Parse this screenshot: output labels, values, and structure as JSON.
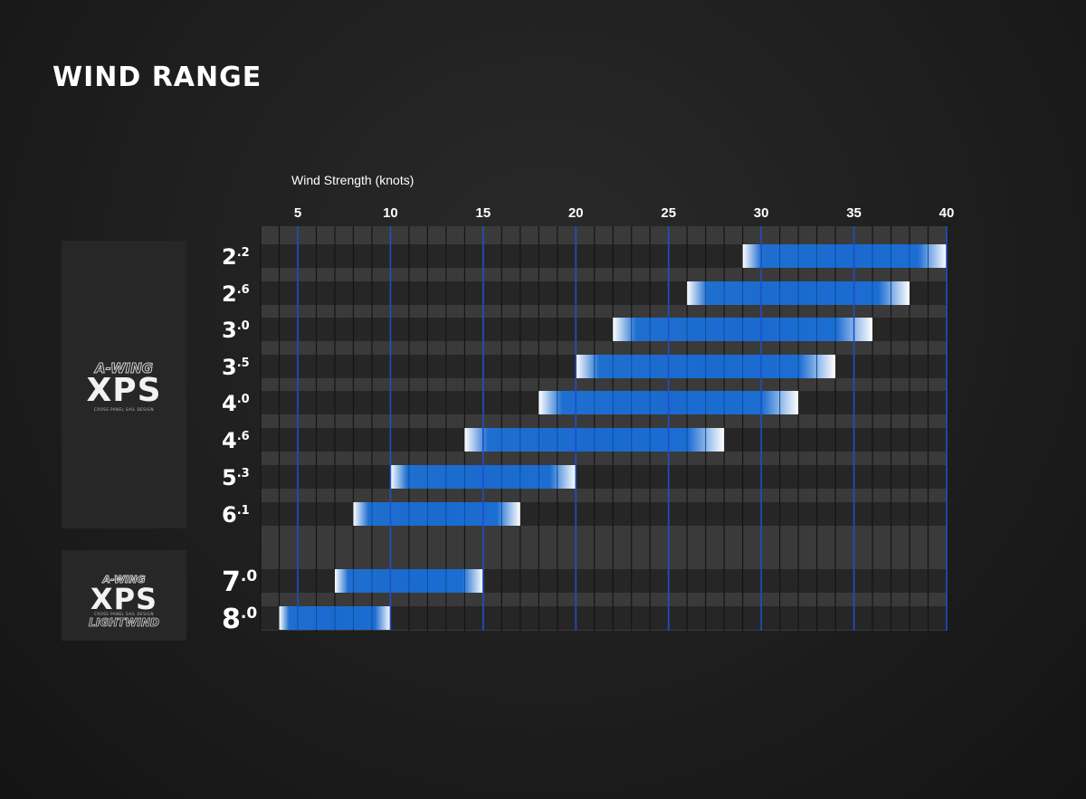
{
  "title": "WIND RANGE",
  "chart_data": {
    "type": "bar",
    "subtype": "range-bar",
    "xlabel": "Wind Strength (knots)",
    "xlim": [
      3,
      40
    ],
    "xticks": [
      5,
      10,
      15,
      20,
      25,
      30,
      35,
      40
    ],
    "grid": true,
    "series_color": "#1a6fd4",
    "groups": [
      {
        "brand_top": "A-WING",
        "brand_main": "XPS",
        "brand_tag": "CROSS PANEL SAIL DESIGN",
        "rows": [
          {
            "label_main": "2",
            "label_sup": ".2",
            "min": 29,
            "max": 40
          },
          {
            "label_main": "2",
            "label_sup": ".6",
            "min": 26,
            "max": 38
          },
          {
            "label_main": "3",
            "label_sup": ".0",
            "min": 22,
            "max": 36
          },
          {
            "label_main": "3",
            "label_sup": ".5",
            "min": 20,
            "max": 34
          },
          {
            "label_main": "4",
            "label_sup": ".0",
            "min": 18,
            "max": 32
          },
          {
            "label_main": "4",
            "label_sup": ".6",
            "min": 14,
            "max": 28
          },
          {
            "label_main": "5",
            "label_sup": ".3",
            "min": 10,
            "max": 20
          },
          {
            "label_main": "6",
            "label_sup": ".1",
            "min": 8,
            "max": 17
          }
        ]
      },
      {
        "brand_top": "A-WING",
        "brand_main": "XPS",
        "brand_tag": "CROSS PANEL SAIL DESIGN",
        "brand_bottom": "LIGHTWIND",
        "rows": [
          {
            "label_main": "7",
            "label_sup": ".0",
            "min": 7,
            "max": 15
          },
          {
            "label_main": "8",
            "label_sup": ".0",
            "min": 4,
            "max": 10
          }
        ]
      }
    ]
  }
}
